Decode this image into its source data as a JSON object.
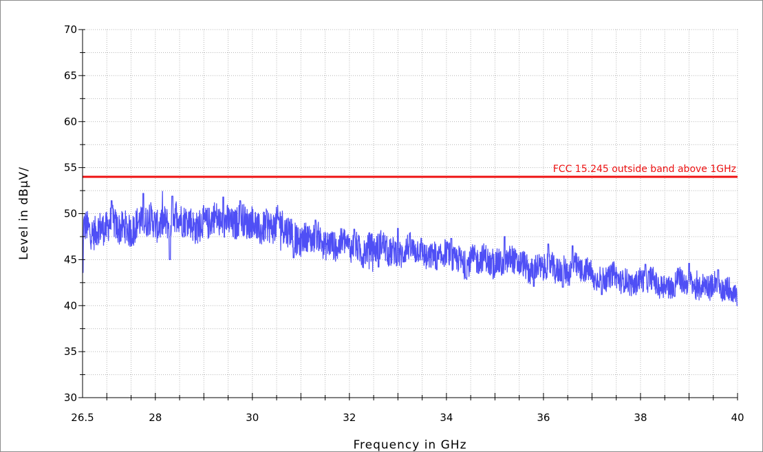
{
  "colors": {
    "trace": "#4f4ff5",
    "limit": "#ee1111",
    "grid": "#b4b4b4",
    "axis": "#000000",
    "border": "#8a8a8a"
  },
  "chart_data": {
    "type": "line",
    "xlabel": "Frequency in GHz",
    "ylabel": "Level in dBµV/",
    "xlim": [
      26.5,
      40
    ],
    "ylim": [
      30,
      70
    ],
    "x_ticks": [
      "26.5",
      "28",
      "30",
      "32",
      "34",
      "36",
      "38",
      "40"
    ],
    "y_ticks": [
      "30",
      "35",
      "40",
      "45",
      "50",
      "55",
      "60",
      "65",
      "70"
    ],
    "grid": true,
    "limit_line": {
      "name": "FCC 15.245 outside band above 1GHz",
      "value": 54
    },
    "series": [
      {
        "style": "noisy",
        "x": [
          26.5,
          27.0,
          27.5,
          28.0,
          28.5,
          29.0,
          29.5,
          30.0,
          30.5,
          30.75,
          31.0,
          31.5,
          32.0,
          32.5,
          33.0,
          33.5,
          34.0,
          34.5,
          35.0,
          35.5,
          36.0,
          36.5,
          37.0,
          37.5,
          38.0,
          38.5,
          39.0,
          39.5,
          40.0
        ],
        "mean": [
          48.3,
          48.5,
          48.6,
          49.1,
          49.3,
          48.9,
          49.3,
          48.8,
          48.6,
          48.3,
          47.2,
          47.0,
          46.3,
          46.2,
          46.0,
          45.8,
          45.2,
          44.8,
          44.8,
          44.5,
          44.0,
          44.1,
          43.4,
          42.8,
          42.6,
          42.4,
          42.4,
          42.1,
          41.8
        ],
        "spread": [
          1.8,
          1.8,
          1.8,
          1.8,
          1.8,
          1.8,
          1.8,
          1.8,
          1.8,
          1.8,
          1.6,
          1.6,
          1.6,
          1.6,
          1.6,
          1.5,
          1.5,
          1.5,
          1.5,
          1.5,
          1.5,
          1.5,
          1.3,
          1.3,
          1.3,
          1.3,
          1.3,
          1.3,
          1.3
        ],
        "peaks": [
          [
            27.1,
            51.4
          ],
          [
            27.75,
            52.2
          ],
          [
            28.35,
            51.9
          ],
          [
            29.4,
            51.8
          ],
          [
            29.75,
            51.4
          ],
          [
            30.3,
            50.3
          ],
          [
            31.3,
            49.3
          ],
          [
            32.1,
            48.3
          ],
          [
            33.0,
            48.4
          ],
          [
            34.1,
            47.3
          ],
          [
            35.2,
            47.5
          ],
          [
            36.1,
            46.7
          ],
          [
            36.6,
            46.5
          ],
          [
            37.2,
            44.8
          ],
          [
            38.1,
            44.5
          ],
          [
            39.0,
            44.6
          ],
          [
            39.6,
            43.9
          ]
        ],
        "dips": [
          [
            26.5,
            43.6
          ],
          [
            28.3,
            45.0
          ],
          [
            30.85,
            45.2
          ],
          [
            32.6,
            44.2
          ],
          [
            33.8,
            43.9
          ],
          [
            34.4,
            43.0
          ],
          [
            35.8,
            42.1
          ],
          [
            36.4,
            42.0
          ],
          [
            37.2,
            41.2
          ],
          [
            38.7,
            41.0
          ],
          [
            40.0,
            40.0
          ]
        ]
      }
    ]
  }
}
